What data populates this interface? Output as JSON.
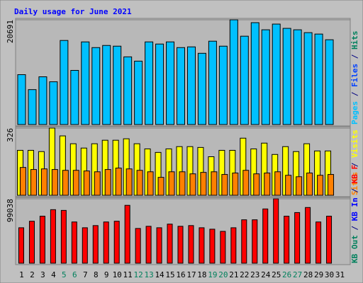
{
  "title": "Daily usage for June 2021",
  "title_color": "#0000ff",
  "chart_data": [
    {
      "type": "bar",
      "categories": [
        "1",
        "2",
        "3",
        "4",
        "5",
        "6",
        "7",
        "8",
        "9",
        "10",
        "11",
        "12",
        "13",
        "14",
        "15",
        "16",
        "17",
        "18",
        "19",
        "20",
        "21",
        "22",
        "23",
        "24",
        "25",
        "26",
        "27",
        "28",
        "29",
        "30",
        "31"
      ],
      "category_colors": [
        "#000000",
        "#000000",
        "#000000",
        "#000000",
        "#00805c",
        "#00805c",
        "#000000",
        "#000000",
        "#000000",
        "#000000",
        "#000000",
        "#00805c",
        "#00805c",
        "#000000",
        "#000000",
        "#000000",
        "#000000",
        "#000000",
        "#00805c",
        "#00805c",
        "#000000",
        "#000000",
        "#000000",
        "#000000",
        "#000000",
        "#00805c",
        "#00805c",
        "#000000",
        "#000000",
        "#000000",
        "#000000"
      ],
      "legend_separator": " / ",
      "series": [
        {
          "name": "Hits",
          "color": "#00805c",
          "values": [
            null,
            null,
            null,
            null,
            null,
            null,
            null,
            null,
            null,
            null,
            null,
            null,
            null,
            null,
            null,
            null,
            null,
            null,
            null,
            null,
            null,
            null,
            null,
            null,
            null,
            null,
            null,
            null,
            null,
            null,
            null
          ]
        },
        {
          "name": "Files",
          "color": "#0040ff",
          "values": [
            null,
            null,
            null,
            null,
            null,
            null,
            null,
            null,
            null,
            null,
            null,
            null,
            null,
            null,
            null,
            null,
            null,
            null,
            null,
            null,
            null,
            null,
            null,
            null,
            null,
            null,
            null,
            null,
            null,
            null,
            null
          ]
        },
        {
          "name": "Pages",
          "color": "#00c0ff",
          "values": [
            9853,
            6897,
            9431,
            8446,
            16610,
            10698,
            16328,
            15202,
            15624,
            15484,
            13372,
            12528,
            16328,
            15906,
            16328,
            15202,
            15343,
            14076,
            16469,
            15484,
            20691,
            17454,
            20129,
            18721,
            19847,
            19003,
            18721,
            18158,
            17876,
            16750,
            null
          ]
        }
      ],
      "ylim": [
        0,
        20691
      ],
      "yticks": [
        20691
      ]
    },
    {
      "type": "bar",
      "legend_separator": " / ",
      "series": [
        {
          "name": "Visits",
          "color": "#ffff00",
          "values": [
            218,
            218,
            212,
            326,
            288,
            250,
            229,
            250,
            267,
            267,
            274,
            250,
            225,
            208,
            225,
            236,
            236,
            232,
            187,
            218,
            218,
            277,
            225,
            253,
            198,
            236,
            212,
            250,
            215,
            215,
            null
          ]
        },
        {
          "name": "Sites",
          "color": "#ff8000",
          "values": [
            135,
            125,
            128,
            125,
            121,
            121,
            118,
            114,
            125,
            132,
            128,
            121,
            114,
            87,
            114,
            114,
            104,
            111,
            114,
            101,
            108,
            121,
            104,
            108,
            114,
            97,
            90,
            108,
            97,
            101,
            null
          ]
        }
      ],
      "ylim": [
        0,
        326
      ],
      "yticks": [
        326
      ]
    },
    {
      "type": "bar",
      "legend_separator": " / ",
      "series": [
        {
          "name": "KB F",
          "color": "#ff0000",
          "values": [
            54527,
            64542,
            72332,
            82347,
            81234,
            63430,
            54527,
            57866,
            63430,
            64542,
            89024,
            53414,
            56753,
            54527,
            60091,
            56753,
            57866,
            54527,
            52302,
            48963,
            54527,
            66768,
            66768,
            83460,
            99038,
            72332,
            77896,
            85686,
            63430,
            72332,
            null
          ]
        },
        {
          "name": "KB In",
          "color": "#0000ff",
          "values": [
            null,
            null,
            null,
            null,
            null,
            null,
            null,
            null,
            null,
            null,
            null,
            null,
            null,
            null,
            null,
            null,
            null,
            null,
            null,
            null,
            null,
            null,
            null,
            null,
            null,
            null,
            null,
            null,
            null,
            null,
            null
          ]
        },
        {
          "name": "KB Out",
          "color": "#00805c",
          "values": [
            null,
            null,
            null,
            null,
            null,
            null,
            null,
            null,
            null,
            null,
            null,
            null,
            null,
            null,
            null,
            null,
            null,
            null,
            null,
            null,
            null,
            null,
            null,
            null,
            null,
            null,
            null,
            null,
            null,
            null,
            null
          ]
        }
      ],
      "ylim": [
        0,
        99038
      ],
      "yticks": [
        99038
      ]
    }
  ]
}
